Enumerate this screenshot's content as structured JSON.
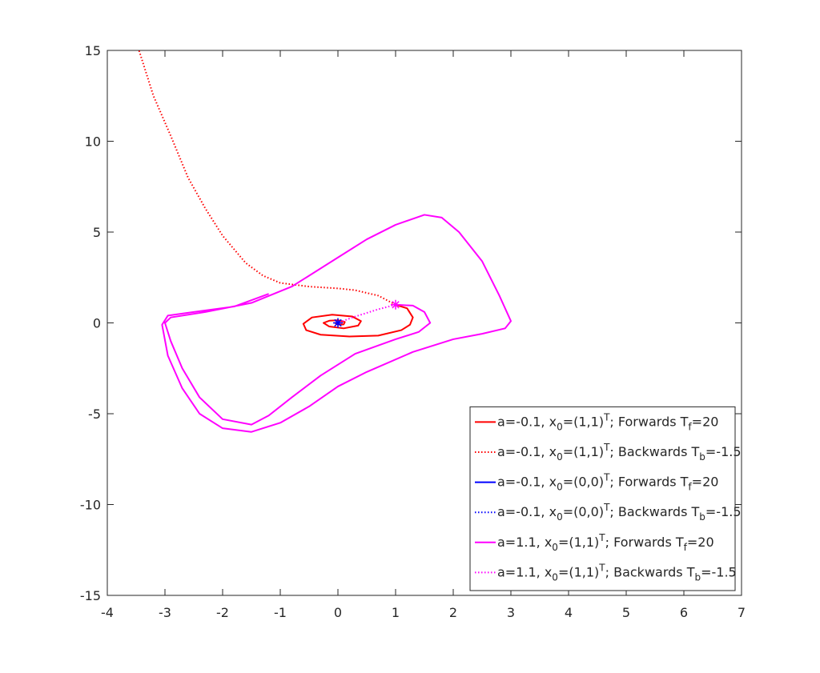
{
  "chart_data": {
    "type": "line",
    "xlim": [
      -4,
      7
    ],
    "ylim": [
      -15,
      15
    ],
    "xticks": [
      -4,
      -3,
      -2,
      -1,
      0,
      1,
      2,
      3,
      4,
      5,
      6,
      7
    ],
    "yticks": [
      -15,
      -10,
      -5,
      0,
      5,
      10,
      15
    ],
    "legend": "lower right",
    "series": [
      {
        "name": "a=-0.1, x0=(1,1)T; Forwards Tf=20",
        "color": "#ff0000",
        "style": "solid",
        "x": [
          1,
          1.2,
          1.3,
          1.25,
          1.1,
          0.7,
          0.2,
          -0.3,
          -0.55,
          -0.6,
          -0.45,
          -0.1,
          0.25,
          0.4,
          0.35,
          0.1,
          -0.15,
          -0.25,
          -0.15,
          0,
          0.12,
          0.1,
          0,
          -0.05,
          0
        ],
        "y": [
          1,
          0.8,
          0.3,
          -0.1,
          -0.4,
          -0.7,
          -0.75,
          -0.65,
          -0.4,
          -0.05,
          0.3,
          0.45,
          0.35,
          0.1,
          -0.15,
          -0.3,
          -0.2,
          0,
          0.12,
          0.15,
          0.05,
          -0.08,
          -0.1,
          0,
          0
        ]
      },
      {
        "name": "a=-0.1, x0=(1,1)T; Backwards Tb=-1.5",
        "color": "#ff0000",
        "style": "dotted",
        "x": [
          1,
          0.7,
          0.3,
          0,
          -0.5,
          -1,
          -1.3,
          -1.6,
          -2,
          -2.3,
          -2.6,
          -2.9,
          -3.2,
          -3.45
        ],
        "y": [
          1,
          1.5,
          1.8,
          1.9,
          2,
          2.2,
          2.6,
          3.3,
          4.8,
          6.3,
          8,
          10.3,
          12.5,
          15
        ]
      },
      {
        "name": "a=-0.1, x0=(0,0)T; Forwards Tf=20",
        "color": "#0000ff",
        "style": "solid",
        "marker": "*",
        "x": [
          0,
          0
        ],
        "y": [
          0,
          0
        ]
      },
      {
        "name": "a=-0.1, x0=(0,0)T; Backwards Tb=-1.5",
        "color": "#0000ff",
        "style": "dotted",
        "x": [
          0,
          0
        ],
        "y": [
          0,
          0
        ]
      },
      {
        "name": "a=1.1, x0=(1,1)T; Forwards Tf=20",
        "color": "#ff00ff",
        "style": "solid",
        "marker": "*",
        "x": [
          1,
          1.3,
          1.5,
          1.6,
          1.4,
          1,
          0.3,
          -0.3,
          -0.8,
          -1.2,
          -1.5,
          -2,
          -2.4,
          -2.7,
          -2.9,
          -3,
          -2.9,
          -2.3,
          -1.5,
          -0.8,
          0,
          0.5,
          1,
          1.5,
          1.8,
          2.1,
          2.5,
          2.8,
          3,
          2.9,
          2.5,
          2,
          1.3,
          0.5,
          0,
          -0.5,
          -1,
          -1.5,
          -2,
          -2.4,
          -2.7,
          -2.95,
          -3.05,
          -2.95,
          -2.5,
          -1.8,
          -1.2
        ],
        "y": [
          1,
          0.95,
          0.6,
          0,
          -0.5,
          -0.9,
          -1.7,
          -2.9,
          -4.1,
          -5.1,
          -5.6,
          -5.3,
          -4.1,
          -2.5,
          -1,
          0,
          0.3,
          0.6,
          1.1,
          2,
          3.6,
          4.6,
          5.4,
          5.95,
          5.8,
          5,
          3.4,
          1.5,
          0.1,
          -0.3,
          -0.6,
          -0.9,
          -1.6,
          -2.7,
          -3.5,
          -4.6,
          -5.5,
          -6,
          -5.8,
          -5,
          -3.6,
          -1.8,
          -0.1,
          0.4,
          0.6,
          0.9,
          1.6
        ]
      },
      {
        "name": "a=1.1, x0=(1,1)T; Backwards Tb=-1.5",
        "color": "#ff00ff",
        "style": "dotted",
        "x": [
          1,
          0.7,
          0.45,
          0.25,
          0.1,
          0
        ],
        "y": [
          1,
          0.75,
          0.5,
          0.3,
          0.12,
          0
        ]
      }
    ]
  }
}
